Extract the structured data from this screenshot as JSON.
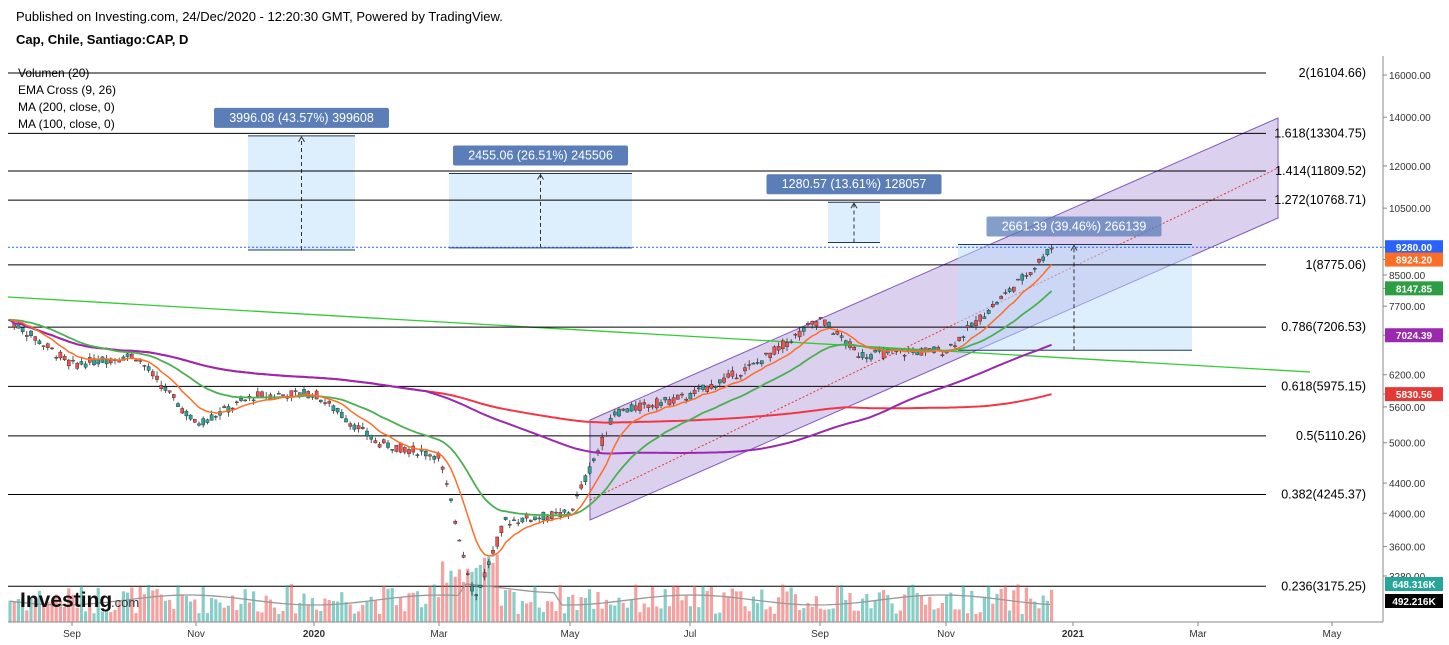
{
  "header": {
    "published": "Published on Investing.com, 24/Dec/2020 - 12:20:30 GMT, Powered by TradingView.",
    "symbol": "Cap, Chile, Santiago:CAP, D"
  },
  "indicators": [
    "Volumen (20)",
    "EMA Cross (9, 26)",
    "MA (200, close, 0)",
    "MA (100, close, 0)"
  ],
  "logo": {
    "name": "Investing",
    "suffix": ".com"
  },
  "colors": {
    "up": "#26a69a",
    "down": "#ef5350",
    "ema9": "#ff6d24",
    "ema26": "#4caf50",
    "ma200": "#f23645",
    "ma100": "#9c27b0",
    "trend": "#33cc33",
    "channel": "#7e57c2"
  },
  "chart_data": {
    "type": "candlestick",
    "x_axis_labels": [
      "Sep",
      "Nov",
      "2020",
      "Mar",
      "May",
      "Jul",
      "Sep",
      "Nov",
      "2021",
      "Mar",
      "May"
    ],
    "y_scale": "log",
    "y_ticks": [
      16000,
      14000,
      12000,
      10500,
      9280,
      8924.2,
      8500,
      8147.85,
      7700,
      7024.39,
      6200,
      5830.56,
      5600,
      5000,
      4400,
      4000,
      3600,
      3280
    ],
    "price_badges": [
      {
        "label": "9280.00",
        "value": 9280,
        "color": "#2962ff"
      },
      {
        "label": "8924.20",
        "value": 8924.2,
        "color": "#ff6d24"
      },
      {
        "label": "8147.85",
        "value": 8147.85,
        "color": "#2e9e45"
      },
      {
        "label": "7024.39",
        "value": 7024.39,
        "color": "#9c27b0"
      },
      {
        "label": "5830.56",
        "value": 5830.56,
        "color": "#e53935"
      }
    ],
    "volume_badges": [
      {
        "label": "648.316K",
        "color": "#26a69a"
      },
      {
        "label": "492.216K",
        "color": "#000000"
      }
    ],
    "fib_levels": [
      {
        "ratio": "2",
        "label": "2(16104.66)",
        "value": 16104.66
      },
      {
        "ratio": "1.618",
        "label": "1.618(13304.75)",
        "value": 13304.75
      },
      {
        "ratio": "1.414",
        "label": "1.414(11809.52)",
        "value": 11809.52
      },
      {
        "ratio": "1.272",
        "label": "1.272(10768.71)",
        "value": 10768.71
      },
      {
        "ratio": "1",
        "label": "1(8775.06)",
        "value": 8775.06
      },
      {
        "ratio": "0.786",
        "label": "0.786(7206.53)",
        "value": 7206.53
      },
      {
        "ratio": "0.618",
        "label": "0.618(5975.15)",
        "value": 5975.15
      },
      {
        "ratio": "0.5",
        "label": "0.5(5110.26)",
        "value": 5110.26
      },
      {
        "ratio": "0.382",
        "label": "0.382(4245.37)",
        "value": 4245.37
      },
      {
        "ratio": "0.236",
        "label": "0.236(3175.25)",
        "value": 3175.25
      }
    ],
    "measurements": [
      {
        "label": "3996.08 (43.57%) 399608",
        "from": 9200,
        "to": 13200
      },
      {
        "label": "2455.06 (26.51%) 245506",
        "from": 9260,
        "to": 11715
      },
      {
        "label": "1280.57 (13.61%) 128057",
        "from": 9420,
        "to": 10700
      },
      {
        "label": "2661.39 (39.46%) 266139",
        "from": 6700,
        "to": 9361
      }
    ],
    "last_price": 9280.0,
    "series": [
      {
        "name": "Volumen (20)",
        "type": "volume"
      },
      {
        "name": "EMA Cross (9, 26)",
        "type": "line"
      },
      {
        "name": "MA (200, close, 0)",
        "type": "line"
      },
      {
        "name": "MA (100, close, 0)",
        "type": "line"
      }
    ],
    "price_path": [
      {
        "x": "Aug 2019",
        "y": 7400
      },
      {
        "x": "Sep 2019",
        "y": 6400
      },
      {
        "x": "Oct 2019",
        "y": 6600
      },
      {
        "x": "Nov 2019",
        "y": 5300
      },
      {
        "x": "Dec 2019",
        "y": 5800
      },
      {
        "x": "Jan 2020",
        "y": 5850
      },
      {
        "x": "Feb 2020",
        "y": 5000
      },
      {
        "x": "Mar 2020",
        "y": 4800
      },
      {
        "x": "Mid Mar 2020",
        "y": 3050
      },
      {
        "x": "Apr 2020",
        "y": 3900
      },
      {
        "x": "May 2020",
        "y": 4000
      },
      {
        "x": "Early Jun 2020",
        "y": 5500
      },
      {
        "x": "Jul 2020",
        "y": 5800
      },
      {
        "x": "Aug 2020",
        "y": 6400
      },
      {
        "x": "Sep 2020",
        "y": 7400
      },
      {
        "x": "Early Oct 2020",
        "y": 6600
      },
      {
        "x": "Nov 2020",
        "y": 6700
      },
      {
        "x": "Mid Dec 2020",
        "y": 8600
      },
      {
        "x": "24 Dec 2020",
        "y": 9280
      }
    ]
  }
}
